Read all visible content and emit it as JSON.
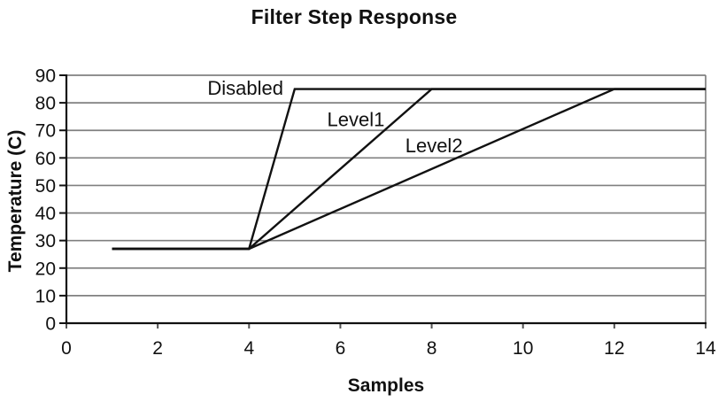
{
  "chart_data": {
    "type": "line",
    "title": "Filter Step Response",
    "xlabel": "Samples",
    "ylabel": "Temperature (C)",
    "xlim": [
      0,
      14
    ],
    "ylim": [
      0,
      90
    ],
    "x_ticks": [
      0,
      2,
      4,
      6,
      8,
      10,
      12,
      14
    ],
    "y_ticks": [
      0,
      10,
      20,
      30,
      40,
      50,
      60,
      70,
      80,
      90
    ],
    "grid": "horizontal-only",
    "legend": "inline-labels-on-plot",
    "colors": {
      "line": "#111111",
      "grid": "#808080",
      "axis": "#111111",
      "background": "#ffffff"
    },
    "series": [
      {
        "name": "Disabled",
        "points": [
          [
            1,
            27
          ],
          [
            4,
            27
          ],
          [
            5,
            85
          ],
          [
            14,
            85
          ]
        ],
        "label_pos": [
          3.92,
          82.9
        ]
      },
      {
        "name": "Level1",
        "points": [
          [
            1,
            27
          ],
          [
            4,
            27
          ],
          [
            8,
            85
          ],
          [
            14,
            85
          ]
        ],
        "label_pos": [
          6.34,
          71.5
        ]
      },
      {
        "name": "Level2",
        "points": [
          [
            1,
            27
          ],
          [
            4,
            27
          ],
          [
            12,
            85
          ],
          [
            14,
            85
          ]
        ],
        "label_pos": [
          8.05,
          62.0
        ]
      }
    ]
  }
}
